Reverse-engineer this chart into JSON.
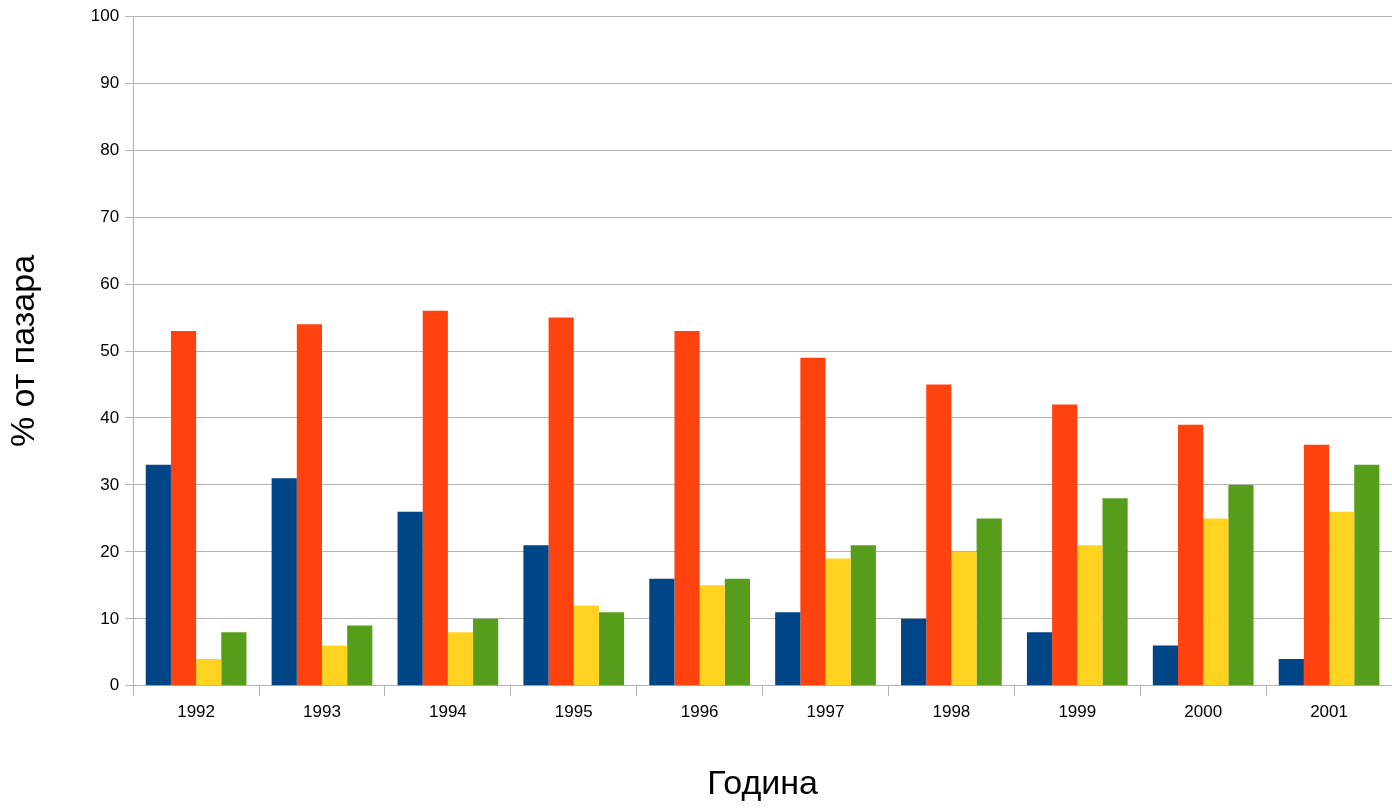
{
  "chart_data": {
    "type": "bar",
    "xlabel": "Година",
    "ylabel": "% от пазара",
    "categories": [
      "1992",
      "1993",
      "1994",
      "1995",
      "1996",
      "1997",
      "1998",
      "1999",
      "2000",
      "2001"
    ],
    "series": [
      {
        "color": "#004586",
        "values": [
          33,
          31,
          26,
          21,
          16,
          11,
          10,
          8,
          6,
          4
        ]
      },
      {
        "color": "#ff420e",
        "values": [
          53,
          54,
          56,
          55,
          53,
          49,
          45,
          42,
          39,
          36
        ]
      },
      {
        "color": "#ffd320",
        "values": [
          4,
          6,
          8,
          12,
          15,
          19,
          20,
          21,
          25,
          26
        ]
      },
      {
        "color": "#579d1c",
        "values": [
          8,
          9,
          10,
          11,
          16,
          21,
          25,
          28,
          30,
          33
        ]
      }
    ],
    "ylim": [
      0,
      100
    ],
    "yticks": [
      0,
      10,
      20,
      30,
      40,
      50,
      60,
      70,
      80,
      90,
      100
    ],
    "grid": "y",
    "legend": false
  }
}
